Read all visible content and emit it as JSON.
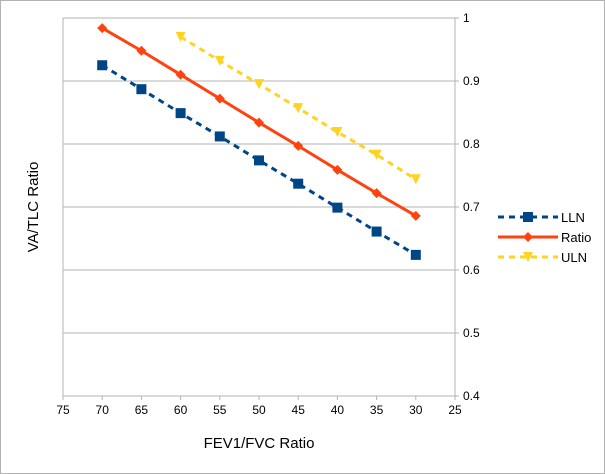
{
  "chart_data": {
    "type": "line",
    "xlabel": "FEV1/FVC Ratio",
    "ylabel": "VA/TLC Ratio",
    "xlim": [
      75,
      25
    ],
    "x_reversed": true,
    "ylim": [
      0.4,
      1
    ],
    "y_axis_side": "right",
    "x_ticks": [
      "75",
      "70",
      "65",
      "60",
      "55",
      "50",
      "45",
      "40",
      "35",
      "30",
      "25"
    ],
    "y_ticks": [
      "0.4",
      "0.5",
      "0.6",
      "0.7",
      "0.8",
      "0.9",
      "1"
    ],
    "grid": "horizontal",
    "legend_position": "right",
    "series": [
      {
        "name": "LLN",
        "color": "#004586",
        "style": "dashed",
        "marker": "square",
        "x": [
          70,
          65,
          60,
          55,
          50,
          45,
          40,
          35,
          30
        ],
        "y": [
          0.925,
          0.887,
          0.849,
          0.812,
          0.774,
          0.737,
          0.699,
          0.661,
          0.624
        ]
      },
      {
        "name": "Ratio",
        "color": "#ff420e",
        "style": "solid",
        "marker": "diamond",
        "x": [
          70,
          65,
          60,
          55,
          50,
          45,
          40,
          35,
          30
        ],
        "y": [
          0.984,
          0.948,
          0.91,
          0.872,
          0.834,
          0.797,
          0.759,
          0.722,
          0.686
        ]
      },
      {
        "name": "ULN",
        "color": "#ffd320",
        "style": "dashed",
        "marker": "triangle-down",
        "x": [
          60,
          55,
          50,
          45,
          40,
          35,
          30
        ],
        "y": [
          0.97,
          0.932,
          0.895,
          0.857,
          0.819,
          0.783,
          0.744
        ]
      }
    ]
  }
}
